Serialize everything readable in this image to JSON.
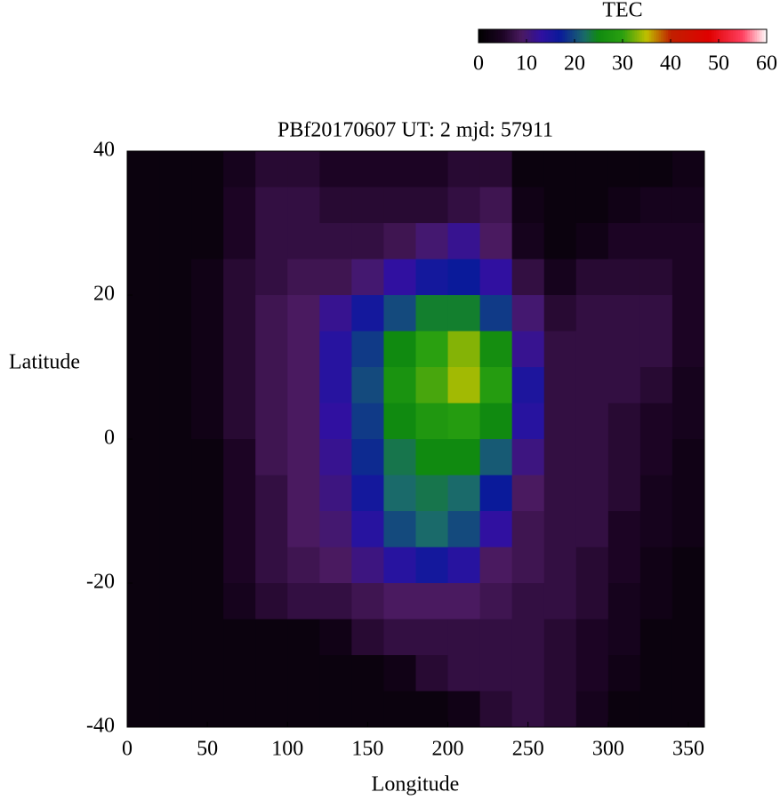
{
  "chart_data": {
    "type": "heatmap",
    "title": "PBf20170607  UT: 2  mjd: 57911",
    "x_label": "Longitude",
    "y_label": "Latitude",
    "colorbar_label": "TEC",
    "x": [
      10,
      30,
      50,
      70,
      90,
      110,
      130,
      150,
      170,
      190,
      210,
      230,
      250,
      270,
      290,
      310,
      330,
      350
    ],
    "y": [
      37.5,
      32.5,
      27.5,
      22.5,
      17.5,
      12.5,
      7.5,
      2.5,
      -2.5,
      -7.5,
      -12.5,
      -17.5,
      -22.5,
      -27.5,
      -32.5,
      -37.5
    ],
    "cell_width": 20,
    "cell_height": 5,
    "z": [
      [
        2,
        2,
        2,
        4,
        6,
        6,
        5,
        5,
        5,
        5,
        6,
        6,
        2,
        2,
        2,
        2,
        2,
        3
      ],
      [
        2,
        2,
        2,
        5,
        7,
        7,
        6,
        6,
        6,
        6,
        7,
        8,
        3,
        2,
        2,
        3,
        4,
        4
      ],
      [
        2,
        2,
        2,
        5,
        7,
        7,
        7,
        7,
        8,
        10,
        12,
        9,
        4,
        2,
        3,
        5,
        5,
        5
      ],
      [
        2,
        2,
        3,
        6,
        7,
        8,
        8,
        10,
        13,
        16,
        17,
        13,
        7,
        4,
        6,
        6,
        6,
        5
      ],
      [
        2,
        2,
        3,
        6,
        8,
        9,
        12,
        16,
        20,
        24,
        24,
        19,
        10,
        6,
        7,
        7,
        7,
        5
      ],
      [
        2,
        2,
        3,
        6,
        8,
        9,
        14,
        19,
        25,
        30,
        33,
        26,
        12,
        7,
        7,
        7,
        7,
        5
      ],
      [
        2,
        2,
        3,
        6,
        8,
        9,
        14,
        20,
        27,
        31,
        34,
        29,
        15,
        7,
        7,
        7,
        6,
        4
      ],
      [
        2,
        2,
        3,
        6,
        8,
        9,
        13,
        19,
        25,
        28,
        29,
        25,
        14,
        7,
        7,
        6,
        5,
        4
      ],
      [
        2,
        2,
        2,
        5,
        8,
        9,
        12,
        18,
        23,
        25,
        25,
        21,
        11,
        7,
        7,
        6,
        5,
        3
      ],
      [
        2,
        2,
        2,
        5,
        7,
        9,
        11,
        16,
        22,
        23,
        22,
        17,
        9,
        7,
        7,
        6,
        4,
        3
      ],
      [
        2,
        2,
        2,
        5,
        7,
        9,
        10,
        14,
        20,
        22,
        20,
        13,
        8,
        7,
        7,
        5,
        4,
        3
      ],
      [
        2,
        2,
        2,
        5,
        7,
        8,
        9,
        11,
        14,
        16,
        14,
        9,
        8,
        7,
        6,
        5,
        3,
        2
      ],
      [
        2,
        2,
        2,
        4,
        6,
        7,
        7,
        8,
        9,
        9,
        9,
        8,
        7,
        7,
        6,
        4,
        3,
        2
      ],
      [
        2,
        2,
        2,
        2,
        2,
        2,
        3,
        6,
        7,
        7,
        7,
        7,
        7,
        6,
        5,
        4,
        2,
        2
      ],
      [
        2,
        2,
        2,
        2,
        2,
        2,
        2,
        2,
        3,
        6,
        7,
        7,
        7,
        6,
        5,
        3,
        2,
        2
      ],
      [
        2,
        2,
        2,
        2,
        2,
        2,
        2,
        2,
        2,
        2,
        3,
        6,
        7,
        6,
        4,
        2,
        2,
        2
      ]
    ],
    "xlim": [
      0,
      360
    ],
    "xticks": [
      0,
      50,
      100,
      150,
      200,
      250,
      300,
      350
    ],
    "ylim": [
      -40,
      40
    ],
    "yticks": [
      -40,
      -20,
      0,
      20,
      40
    ],
    "clim": [
      0,
      60
    ],
    "cticks": [
      0,
      10,
      20,
      30,
      40,
      50,
      60
    ],
    "colorscale": [
      {
        "value": 0,
        "color": "#000000"
      },
      {
        "value": 5,
        "color": "#1c0424"
      },
      {
        "value": 9,
        "color": "#4a1a60"
      },
      {
        "value": 13,
        "color": "#3010a0"
      },
      {
        "value": 17,
        "color": "#0a1a9a"
      },
      {
        "value": 22,
        "color": "#1a6a6a"
      },
      {
        "value": 25,
        "color": "#108a10"
      },
      {
        "value": 30,
        "color": "#2aa010"
      },
      {
        "value": 35,
        "color": "#c0c000"
      },
      {
        "value": 40,
        "color": "#c02000"
      },
      {
        "value": 48,
        "color": "#e00000"
      },
      {
        "value": 55,
        "color": "#ff4060"
      },
      {
        "value": 60,
        "color": "#ffffff"
      }
    ]
  }
}
